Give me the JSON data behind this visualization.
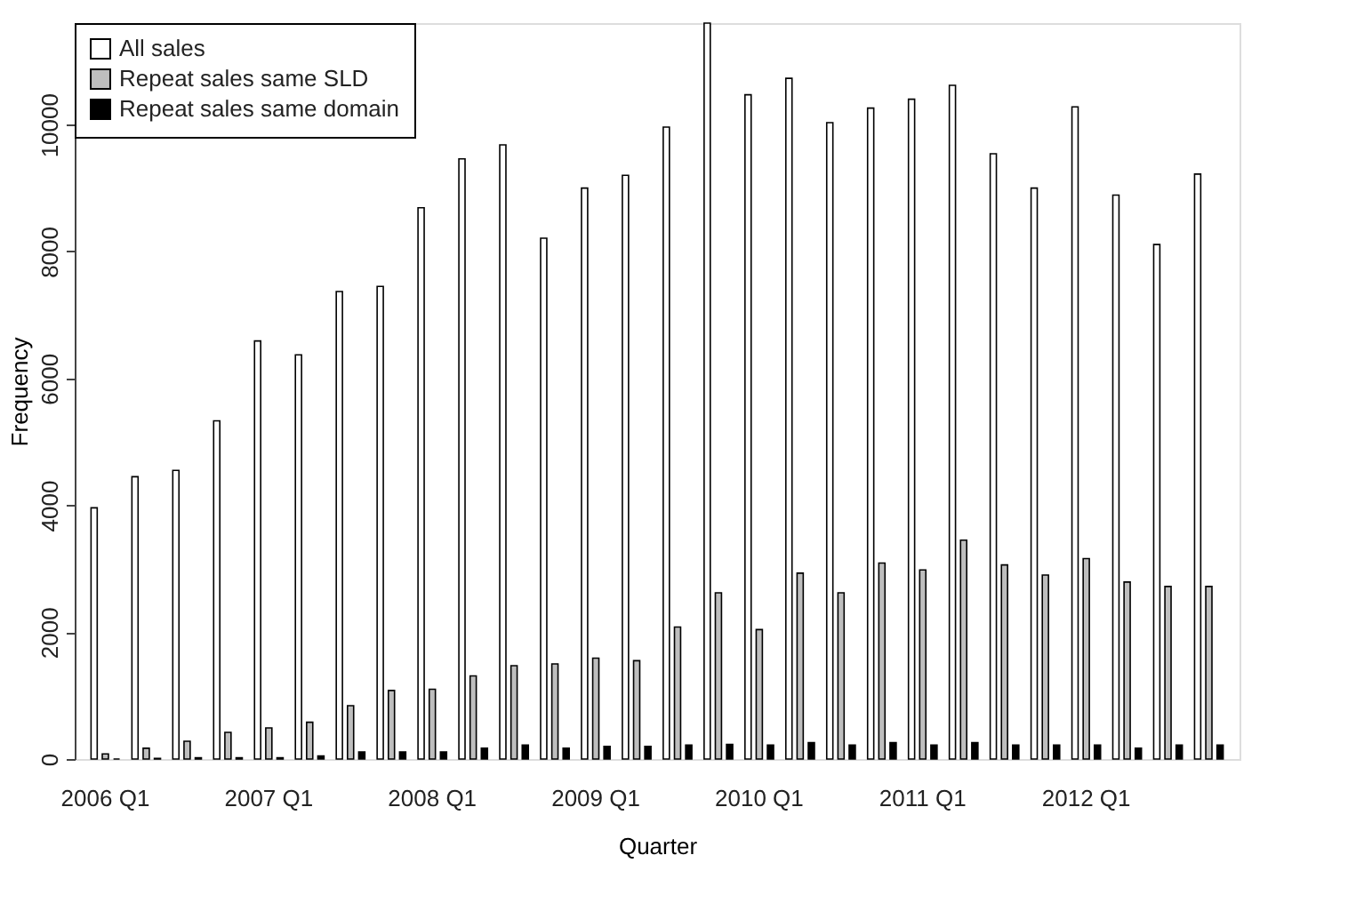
{
  "chart_data": {
    "type": "bar",
    "xlabel": "Quarter",
    "ylabel": "Frequency",
    "categories": [
      "2006 Q1",
      null,
      null,
      null,
      "2007 Q1",
      null,
      null,
      null,
      "2008 Q1",
      null,
      null,
      null,
      "2009 Q1",
      null,
      null,
      null,
      "2010 Q1",
      null,
      null,
      null,
      "2011 Q1",
      null,
      null,
      null,
      "2012 Q1",
      null,
      null,
      null
    ],
    "series": [
      {
        "name": "All sales",
        "color": "#ffffff",
        "values": [
          3960,
          4450,
          4550,
          5330,
          6590,
          6370,
          7370,
          7450,
          8690,
          9460,
          9680,
          8210,
          9000,
          9200,
          9960,
          11600,
          10470,
          10730,
          10030,
          10260,
          10400,
          10620,
          9540,
          9000,
          10280,
          8890,
          8110,
          9220
        ]
      },
      {
        "name": "Repeat sales same SLD",
        "color": "#bebebe",
        "values": [
          80,
          170,
          280,
          420,
          490,
          580,
          840,
          1080,
          1100,
          1310,
          1470,
          1500,
          1590,
          1550,
          2080,
          2620,
          2040,
          2930,
          2620,
          3090,
          2980,
          3450,
          3060,
          2900,
          3160,
          2790,
          2720,
          2720
        ]
      },
      {
        "name": "Repeat sales same domain",
        "color": "#000000",
        "values": [
          0,
          10,
          20,
          20,
          20,
          50,
          110,
          110,
          110,
          170,
          220,
          170,
          200,
          200,
          220,
          230,
          220,
          260,
          220,
          260,
          220,
          260,
          220,
          220,
          220,
          170,
          220,
          220
        ]
      }
    ],
    "ylim": [
      0,
      11600
    ],
    "yticks": [
      0,
      2000,
      4000,
      6000,
      8000,
      10000
    ],
    "grid": false,
    "legend": "top left"
  }
}
